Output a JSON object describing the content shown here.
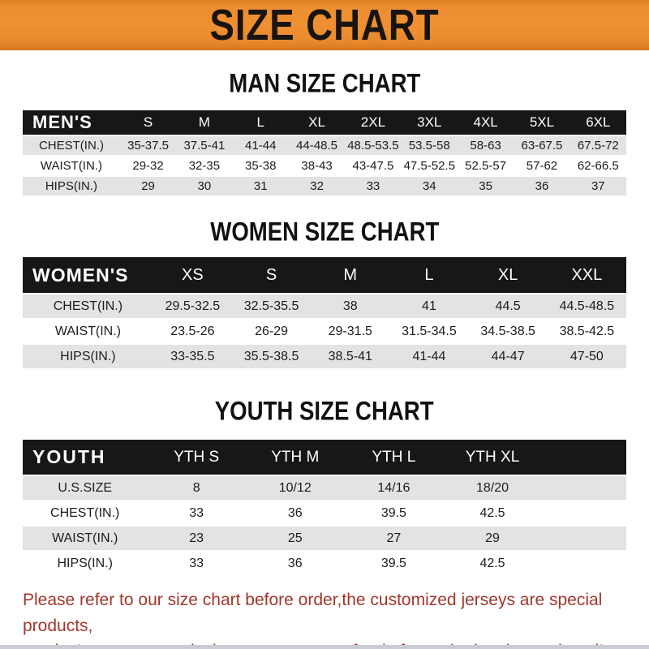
{
  "header": {
    "title": "SIZE CHART"
  },
  "sections": [
    {
      "id": "men",
      "heading": "MAN SIZE CHART",
      "table": {
        "header_label": "MEN'S",
        "columns": [
          "S",
          "M",
          "L",
          "XL",
          "2XL",
          "3XL",
          "4XL",
          "5XL",
          "6XL"
        ],
        "rows": [
          {
            "label": "CHEST(IN.)",
            "values": [
              "35-37.5",
              "37.5-41",
              "41-44",
              "44-48.5",
              "48.5-53.5",
              "53.5-58",
              "58-63",
              "63-67.5",
              "67.5-72"
            ]
          },
          {
            "label": "WAIST(IN.)",
            "values": [
              "29-32",
              "32-35",
              "35-38",
              "38-43",
              "43-47.5",
              "47.5-52.5",
              "52.5-57",
              "57-62",
              "62-66.5"
            ]
          },
          {
            "label": "HIPS(IN.)",
            "values": [
              "29",
              "30",
              "31",
              "32",
              "33",
              "34",
              "35",
              "36",
              "37"
            ]
          }
        ]
      }
    },
    {
      "id": "women",
      "heading": "WOMEN SIZE CHART",
      "table": {
        "header_label": "WOMEN'S",
        "columns": [
          "XS",
          "S",
          "M",
          "L",
          "XL",
          "XXL"
        ],
        "rows": [
          {
            "label": "CHEST(IN.)",
            "values": [
              "29.5-32.5",
              "32.5-35.5",
              "38",
              "41",
              "44.5",
              "44.5-48.5"
            ]
          },
          {
            "label": "WAIST(IN.)",
            "values": [
              "23.5-26",
              "26-29",
              "29-31.5",
              "31.5-34.5",
              "34.5-38.5",
              "38.5-42.5"
            ]
          },
          {
            "label": "HIPS(IN.)",
            "values": [
              "33-35.5",
              "35.5-38.5",
              "38.5-41",
              "41-44",
              "44-47",
              "47-50"
            ]
          }
        ]
      }
    },
    {
      "id": "youth",
      "heading": "YOUTH SIZE CHART",
      "table": {
        "header_label": "YOUTH",
        "columns": [
          "YTH S",
          "YTH M",
          "YTH L",
          "YTH XL"
        ],
        "rows": [
          {
            "label": "U.S.SIZE",
            "values": [
              "8",
              "10/12",
              "14/16",
              "18/20"
            ]
          },
          {
            "label": "CHEST(IN.)",
            "values": [
              "33",
              "36",
              "39.5",
              "42.5"
            ]
          },
          {
            "label": "WAIST(IN.)",
            "values": [
              "23",
              "25",
              "27",
              "29"
            ]
          },
          {
            "label": "HIPS(IN.)",
            "values": [
              "33",
              "36",
              "39.5",
              "42.5"
            ]
          }
        ]
      }
    }
  ],
  "footer": {
    "line1": "Please refer to our size chart before order,the customized jerseys are special products,",
    "line2": "we don't accept cancel, change, teturn or refund after order has been placed!"
  },
  "colors": {
    "banner_orange": "#ED8E31",
    "table_bar_black": "#171717",
    "row_gray": "#E3E3E3",
    "footer_red": "#A4362C"
  }
}
